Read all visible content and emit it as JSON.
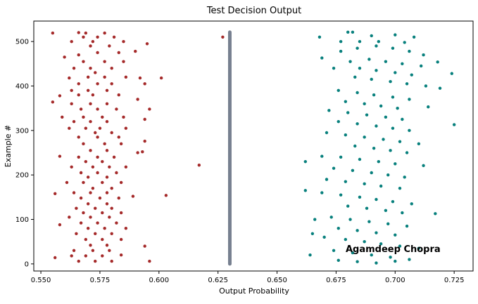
{
  "chart_data": {
    "type": "scatter",
    "title": "Test Decision Output",
    "xlabel": "Output Probability",
    "ylabel": "Example #",
    "xlim": [
      0.547,
      0.733
    ],
    "ylim": [
      -16,
      546
    ],
    "xticks": [
      0.55,
      0.575,
      0.6,
      0.625,
      0.65,
      0.675,
      0.7,
      0.725
    ],
    "xtick_labels": [
      "0.550",
      "0.575",
      "0.600",
      "0.625",
      "0.650",
      "0.675",
      "0.700",
      "0.725"
    ],
    "yticks": [
      0,
      100,
      200,
      300,
      400,
      500
    ],
    "ytick_labels": [
      "0",
      "100",
      "200",
      "300",
      "400",
      "500"
    ],
    "grid": false,
    "colors": {
      "left_cluster": "#a52a2a",
      "right_cluster": "#08807d",
      "threshold_line": "#778090"
    },
    "annotation": "Agamdeep Chopra",
    "series": [
      {
        "color": "#a52a2a",
        "note": "approx. 260 points; shown as representative sample",
        "points": [
          [
            0.555,
            519
          ],
          [
            0.566,
            520
          ],
          [
            0.569,
            519
          ],
          [
            0.577,
            519
          ],
          [
            0.568,
            510
          ],
          [
            0.574,
            510
          ],
          [
            0.581,
            510
          ],
          [
            0.595,
            495
          ],
          [
            0.563,
            500
          ],
          [
            0.572,
            500
          ],
          [
            0.585,
            500
          ],
          [
            0.571,
            490
          ],
          [
            0.579,
            490
          ],
          [
            0.56,
            465
          ],
          [
            0.566,
            470
          ],
          [
            0.574,
            475
          ],
          [
            0.583,
            475
          ],
          [
            0.59,
            478
          ],
          [
            0.568,
            455
          ],
          [
            0.577,
            455
          ],
          [
            0.585,
            455
          ],
          [
            0.564,
            440
          ],
          [
            0.571,
            440
          ],
          [
            0.58,
            440
          ],
          [
            0.573,
            430
          ],
          [
            0.562,
            418
          ],
          [
            0.57,
            420
          ],
          [
            0.577,
            420
          ],
          [
            0.586,
            420
          ],
          [
            0.592,
            418
          ],
          [
            0.601,
            418
          ],
          [
            0.566,
            405
          ],
          [
            0.574,
            405
          ],
          [
            0.58,
            405
          ],
          [
            0.594,
            405
          ],
          [
            0.563,
            390
          ],
          [
            0.57,
            390
          ],
          [
            0.578,
            390
          ],
          [
            0.572,
            380
          ],
          [
            0.558,
            378
          ],
          [
            0.566,
            380
          ],
          [
            0.583,
            380
          ],
          [
            0.591,
            370
          ],
          [
            0.555,
            364
          ],
          [
            0.563,
            360
          ],
          [
            0.571,
            360
          ],
          [
            0.578,
            360
          ],
          [
            0.596,
            348
          ],
          [
            0.567,
            348
          ],
          [
            0.574,
            348
          ],
          [
            0.582,
            348
          ],
          [
            0.559,
            330
          ],
          [
            0.568,
            330
          ],
          [
            0.576,
            330
          ],
          [
            0.585,
            330
          ],
          [
            0.564,
            320
          ],
          [
            0.571,
            320
          ],
          [
            0.578,
            320
          ],
          [
            0.594,
            325
          ],
          [
            0.562,
            305
          ],
          [
            0.569,
            305
          ],
          [
            0.575,
            305
          ],
          [
            0.586,
            305
          ],
          [
            0.573,
            295
          ],
          [
            0.58,
            295
          ],
          [
            0.566,
            285
          ],
          [
            0.574,
            285
          ],
          [
            0.583,
            285
          ],
          [
            0.568,
            270
          ],
          [
            0.577,
            270
          ],
          [
            0.584,
            270
          ],
          [
            0.594,
            276
          ],
          [
            0.571,
            255
          ],
          [
            0.578,
            255
          ],
          [
            0.591,
            250
          ],
          [
            0.593,
            252
          ],
          [
            0.566,
            240
          ],
          [
            0.574,
            240
          ],
          [
            0.581,
            240
          ],
          [
            0.558,
            242
          ],
          [
            0.569,
            230
          ],
          [
            0.576,
            230
          ],
          [
            0.617,
            222
          ],
          [
            0.563,
            218
          ],
          [
            0.572,
            218
          ],
          [
            0.579,
            218
          ],
          [
            0.586,
            218
          ],
          [
            0.567,
            205
          ],
          [
            0.574,
            205
          ],
          [
            0.582,
            205
          ],
          [
            0.57,
            195
          ],
          [
            0.578,
            195
          ],
          [
            0.561,
            183
          ],
          [
            0.568,
            183
          ],
          [
            0.576,
            183
          ],
          [
            0.584,
            183
          ],
          [
            0.572,
            170
          ],
          [
            0.58,
            170
          ],
          [
            0.564,
            160
          ],
          [
            0.571,
            160
          ],
          [
            0.578,
            160
          ],
          [
            0.556,
            158
          ],
          [
            0.603,
            154
          ],
          [
            0.589,
            152
          ],
          [
            0.567,
            148
          ],
          [
            0.575,
            148
          ],
          [
            0.583,
            148
          ],
          [
            0.57,
            135
          ],
          [
            0.578,
            135
          ],
          [
            0.565,
            125
          ],
          [
            0.573,
            125
          ],
          [
            0.58,
            125
          ],
          [
            0.568,
            115
          ],
          [
            0.576,
            115
          ],
          [
            0.584,
            115
          ],
          [
            0.562,
            105
          ],
          [
            0.571,
            105
          ],
          [
            0.579,
            105
          ],
          [
            0.567,
            92
          ],
          [
            0.574,
            92
          ],
          [
            0.582,
            92
          ],
          [
            0.558,
            88
          ],
          [
            0.57,
            80
          ],
          [
            0.577,
            80
          ],
          [
            0.586,
            80
          ],
          [
            0.565,
            68
          ],
          [
            0.573,
            68
          ],
          [
            0.58,
            68
          ],
          [
            0.569,
            55
          ],
          [
            0.576,
            55
          ],
          [
            0.584,
            55
          ],
          [
            0.594,
            40
          ],
          [
            0.571,
            42
          ],
          [
            0.578,
            42
          ],
          [
            0.564,
            30
          ],
          [
            0.572,
            30
          ],
          [
            0.579,
            30
          ],
          [
            0.556,
            14
          ],
          [
            0.563,
            18
          ],
          [
            0.569,
            18
          ],
          [
            0.576,
            18
          ],
          [
            0.566,
            6
          ],
          [
            0.573,
            6
          ],
          [
            0.58,
            6
          ],
          [
            0.596,
            6
          ],
          [
            0.584,
            20
          ]
        ]
      },
      {
        "color": "#778090",
        "x_const": 0.63,
        "y_from": 0,
        "y_to": 521,
        "extra_points": [
          [
            0.627,
            510
          ]
        ]
      },
      {
        "color": "#08807d",
        "note": "approx. 260 points; shown as representative sample",
        "points": [
          [
            0.68,
            521
          ],
          [
            0.682,
            521
          ],
          [
            0.69,
            513
          ],
          [
            0.7,
            515
          ],
          [
            0.708,
            510
          ],
          [
            0.668,
            510
          ],
          [
            0.677,
            500
          ],
          [
            0.685,
            500
          ],
          [
            0.693,
            500
          ],
          [
            0.704,
            498
          ],
          [
            0.712,
            470
          ],
          [
            0.669,
            463
          ],
          [
            0.677,
            478
          ],
          [
            0.684,
            485
          ],
          [
            0.692,
            490
          ],
          [
            0.699,
            485
          ],
          [
            0.706,
            478
          ],
          [
            0.718,
            454
          ],
          [
            0.724,
            428
          ],
          [
            0.681,
            455
          ],
          [
            0.689,
            460
          ],
          [
            0.696,
            455
          ],
          [
            0.703,
            450
          ],
          [
            0.711,
            445
          ],
          [
            0.674,
            440
          ],
          [
            0.685,
            440
          ],
          [
            0.692,
            435
          ],
          [
            0.7,
            430
          ],
          [
            0.707,
            425
          ],
          [
            0.683,
            420
          ],
          [
            0.69,
            415
          ],
          [
            0.698,
            410
          ],
          [
            0.705,
            405
          ],
          [
            0.713,
            400
          ],
          [
            0.719,
            395
          ],
          [
            0.676,
            390
          ],
          [
            0.684,
            385
          ],
          [
            0.691,
            380
          ],
          [
            0.699,
            375
          ],
          [
            0.706,
            370
          ],
          [
            0.679,
            365
          ],
          [
            0.687,
            360
          ],
          [
            0.694,
            355
          ],
          [
            0.701,
            350
          ],
          [
            0.714,
            353
          ],
          [
            0.672,
            345
          ],
          [
            0.68,
            340
          ],
          [
            0.688,
            335
          ],
          [
            0.696,
            330
          ],
          [
            0.703,
            325
          ],
          [
            0.676,
            320
          ],
          [
            0.684,
            315
          ],
          [
            0.692,
            310
          ],
          [
            0.699,
            305
          ],
          [
            0.706,
            300
          ],
          [
            0.725,
            313
          ],
          [
            0.671,
            295
          ],
          [
            0.679,
            290
          ],
          [
            0.687,
            285
          ],
          [
            0.695,
            280
          ],
          [
            0.702,
            275
          ],
          [
            0.71,
            270
          ],
          [
            0.683,
            265
          ],
          [
            0.691,
            260
          ],
          [
            0.698,
            255
          ],
          [
            0.705,
            250
          ],
          [
            0.669,
            242
          ],
          [
            0.677,
            240
          ],
          [
            0.685,
            235
          ],
          [
            0.693,
            230
          ],
          [
            0.7,
            225
          ],
          [
            0.662,
            230
          ],
          [
            0.712,
            221
          ],
          [
            0.674,
            215
          ],
          [
            0.682,
            210
          ],
          [
            0.69,
            205
          ],
          [
            0.697,
            200
          ],
          [
            0.704,
            195
          ],
          [
            0.671,
            190
          ],
          [
            0.679,
            185
          ],
          [
            0.687,
            180
          ],
          [
            0.694,
            175
          ],
          [
            0.702,
            170
          ],
          [
            0.662,
            165
          ],
          [
            0.669,
            160
          ],
          [
            0.677,
            155
          ],
          [
            0.685,
            150
          ],
          [
            0.692,
            145
          ],
          [
            0.699,
            140
          ],
          [
            0.707,
            135
          ],
          [
            0.68,
            130
          ],
          [
            0.688,
            125
          ],
          [
            0.696,
            120
          ],
          [
            0.703,
            115
          ],
          [
            0.717,
            113
          ],
          [
            0.666,
            100
          ],
          [
            0.673,
            105
          ],
          [
            0.681,
            100
          ],
          [
            0.689,
            95
          ],
          [
            0.697,
            90
          ],
          [
            0.705,
            85
          ],
          [
            0.676,
            80
          ],
          [
            0.684,
            75
          ],
          [
            0.692,
            70
          ],
          [
            0.7,
            65
          ],
          [
            0.665,
            68
          ],
          [
            0.67,
            60
          ],
          [
            0.679,
            55
          ],
          [
            0.687,
            50
          ],
          [
            0.694,
            45
          ],
          [
            0.702,
            40
          ],
          [
            0.71,
            35
          ],
          [
            0.674,
            30
          ],
          [
            0.682,
            25
          ],
          [
            0.69,
            20
          ],
          [
            0.698,
            15
          ],
          [
            0.706,
            10
          ],
          [
            0.664,
            20
          ],
          [
            0.676,
            8
          ],
          [
            0.684,
            5
          ],
          [
            0.692,
            2
          ],
          [
            0.7,
            6
          ]
        ]
      }
    ]
  }
}
